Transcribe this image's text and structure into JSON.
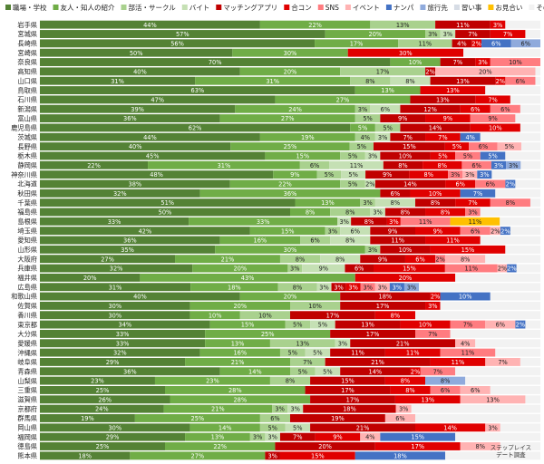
{
  "chart_data": {
    "type": "bar",
    "stacked": "horizontal-100-percent",
    "legend_position": "top",
    "categories": [
      "岩手県",
      "宮城県",
      "長崎県",
      "宮崎県",
      "奈良県",
      "高知県",
      "山口県",
      "鳥取県",
      "石川県",
      "新潟県",
      "富山県",
      "鹿児島県",
      "茨城県",
      "長野県",
      "栃木県",
      "静岡県",
      "神奈川県",
      "北海道",
      "秋田県",
      "千葉県",
      "福島県",
      "島根県",
      "埼玉県",
      "愛知県",
      "山形県",
      "大阪府",
      "兵庫県",
      "福井県",
      "広島県",
      "和歌山県",
      "佐賀県",
      "香川県",
      "東京都",
      "大分県",
      "愛媛県",
      "沖縄県",
      "岐阜県",
      "青森県",
      "山梨県",
      "三重県",
      "滋賀県",
      "京都府",
      "群馬県",
      "岡山県",
      "福岡県",
      "徳島県",
      "熊本県"
    ],
    "series": [
      {
        "name": "職場・学校",
        "color": "#548235",
        "values": [
          44,
          57,
          56,
          50,
          70,
          40,
          31,
          63,
          47,
          39,
          36,
          62,
          44,
          40,
          45,
          22,
          48,
          38,
          32,
          51,
          50,
          33,
          42,
          36,
          35,
          27,
          32,
          20,
          31,
          40,
          30,
          30,
          34,
          33,
          33,
          32,
          29,
          36,
          23,
          25,
          26,
          24,
          19,
          30,
          29,
          25,
          18
        ]
      },
      {
        "name": "友人・知人の紹介",
        "color": "#70AD47",
        "values": [
          22,
          20,
          17,
          30,
          10,
          20,
          31,
          13,
          27,
          24,
          27,
          5,
          19,
          25,
          15,
          31,
          9,
          22,
          36,
          13,
          8,
          33,
          15,
          16,
          30,
          21,
          20,
          43,
          18,
          20,
          20,
          10,
          15,
          25,
          13,
          16,
          21,
          14,
          23,
          28,
          28,
          21,
          25,
          14,
          13,
          22,
          27
        ]
      },
      {
        "name": "部活・サークル",
        "color": "#A9D18E",
        "values": [
          13,
          3,
          11,
          0,
          0,
          17,
          8,
          0,
          0,
          3,
          5,
          5,
          4,
          5,
          5,
          6,
          5,
          5,
          0,
          3,
          8,
          0,
          3,
          6,
          3,
          8,
          3,
          0,
          8,
          0,
          10,
          10,
          5,
          0,
          13,
          5,
          7,
          5,
          8,
          0,
          0,
          3,
          6,
          5,
          3,
          0,
          0
        ]
      },
      {
        "name": "バイト",
        "color": "#C5E0B4",
        "values": [
          0,
          3,
          0,
          0,
          0,
          0,
          8,
          0,
          0,
          6,
          0,
          0,
          3,
          0,
          3,
          11,
          5,
          2,
          0,
          8,
          3,
          3,
          6,
          8,
          0,
          8,
          9,
          0,
          3,
          0,
          0,
          0,
          5,
          0,
          3,
          5,
          0,
          5,
          0,
          0,
          0,
          3,
          0,
          5,
          3,
          0,
          0
        ]
      },
      {
        "name": "マッチングアプリ",
        "color": "#C00000",
        "values": [
          11,
          7,
          4,
          0,
          7,
          2,
          13,
          0,
          13,
          12,
          9,
          14,
          7,
          15,
          10,
          8,
          9,
          14,
          6,
          8,
          8,
          8,
          9,
          11,
          10,
          9,
          6,
          0,
          3,
          18,
          17,
          17,
          13,
          17,
          21,
          11,
          21,
          14,
          15,
          17,
          17,
          18,
          19,
          21,
          7,
          20,
          3
        ]
      },
      {
        "name": "合コン",
        "color": "#E00000",
        "values": [
          3,
          7,
          2,
          30,
          3,
          0,
          2,
          13,
          7,
          6,
          9,
          10,
          7,
          5,
          5,
          8,
          8,
          6,
          10,
          7,
          8,
          3,
          9,
          11,
          15,
          6,
          15,
          20,
          3,
          2,
          3,
          8,
          10,
          0,
          0,
          11,
          11,
          2,
          8,
          8,
          13,
          0,
          0,
          14,
          9,
          17,
          15
        ]
      },
      {
        "name": "SNS",
        "color": "#FF7C80",
        "values": [
          0,
          0,
          0,
          0,
          10,
          0,
          6,
          0,
          0,
          6,
          9,
          0,
          0,
          6,
          5,
          6,
          3,
          6,
          0,
          8,
          3,
          11,
          6,
          0,
          0,
          2,
          11,
          0,
          3,
          0,
          0,
          0,
          7,
          7,
          0,
          11,
          0,
          7,
          0,
          6,
          0,
          0,
          0,
          0,
          0,
          0,
          0
        ]
      },
      {
        "name": "イベント",
        "color": "#FFB3B3",
        "values": [
          0,
          0,
          0,
          0,
          0,
          20,
          0,
          0,
          0,
          0,
          0,
          0,
          0,
          5,
          0,
          0,
          3,
          0,
          0,
          0,
          0,
          0,
          2,
          0,
          0,
          8,
          2,
          0,
          3,
          0,
          0,
          0,
          6,
          0,
          4,
          0,
          7,
          0,
          0,
          6,
          13,
          3,
          6,
          3,
          4,
          8,
          0
        ]
      },
      {
        "name": "ナンパ",
        "color": "#4472C4",
        "values": [
          0,
          0,
          6,
          0,
          0,
          0,
          0,
          0,
          0,
          0,
          0,
          0,
          4,
          0,
          5,
          3,
          3,
          2,
          7,
          0,
          0,
          0,
          2,
          0,
          0,
          0,
          2,
          0,
          3,
          10,
          0,
          0,
          2,
          0,
          0,
          0,
          0,
          0,
          0,
          0,
          0,
          0,
          0,
          0,
          15,
          0,
          18
        ]
      },
      {
        "name": "旅行先",
        "color": "#8FAADC",
        "values": [
          0,
          0,
          6,
          0,
          0,
          0,
          0,
          0,
          0,
          0,
          0,
          0,
          0,
          0,
          0,
          3,
          0,
          0,
          0,
          0,
          0,
          0,
          0,
          0,
          0,
          0,
          0,
          0,
          3,
          0,
          0,
          0,
          0,
          0,
          0,
          0,
          0,
          0,
          8,
          0,
          0,
          0,
          0,
          0,
          0,
          0,
          0
        ]
      },
      {
        "name": "習い事",
        "color": "#D6DCE5",
        "values": [
          0,
          0,
          0,
          0,
          0,
          0,
          0,
          0,
          0,
          0,
          0,
          0,
          0,
          0,
          0,
          0,
          0,
          0,
          0,
          0,
          0,
          0,
          0,
          0,
          0,
          0,
          0,
          0,
          0,
          0,
          0,
          0,
          0,
          0,
          0,
          0,
          0,
          0,
          0,
          0,
          0,
          0,
          0,
          0,
          0,
          0,
          0
        ]
      },
      {
        "name": "お見合い",
        "color": "#FFC000",
        "values": [
          0,
          0,
          0,
          0,
          0,
          0,
          0,
          0,
          0,
          0,
          0,
          0,
          0,
          0,
          0,
          0,
          0,
          0,
          0,
          0,
          0,
          11,
          0,
          0,
          0,
          0,
          0,
          0,
          0,
          0,
          0,
          0,
          0,
          0,
          0,
          0,
          0,
          0,
          0,
          0,
          0,
          0,
          0,
          0,
          0,
          0,
          0
        ]
      },
      {
        "name": "その他",
        "color": "#F2F2F2",
        "values": [
          7,
          3,
          0,
          20,
          0,
          1,
          1,
          11,
          6,
          4,
          5,
          4,
          12,
          4,
          7,
          4,
          10,
          5,
          9,
          2,
          12,
          9,
          6,
          12,
          7,
          11,
          5,
          17,
          25,
          10,
          20,
          25,
          3,
          18,
          13,
          9,
          4,
          17,
          15,
          10,
          3,
          25,
          25,
          8,
          17,
          8,
          19
        ]
      }
    ]
  },
  "source_note": [
    "ステップレイス",
    "デート調査"
  ]
}
